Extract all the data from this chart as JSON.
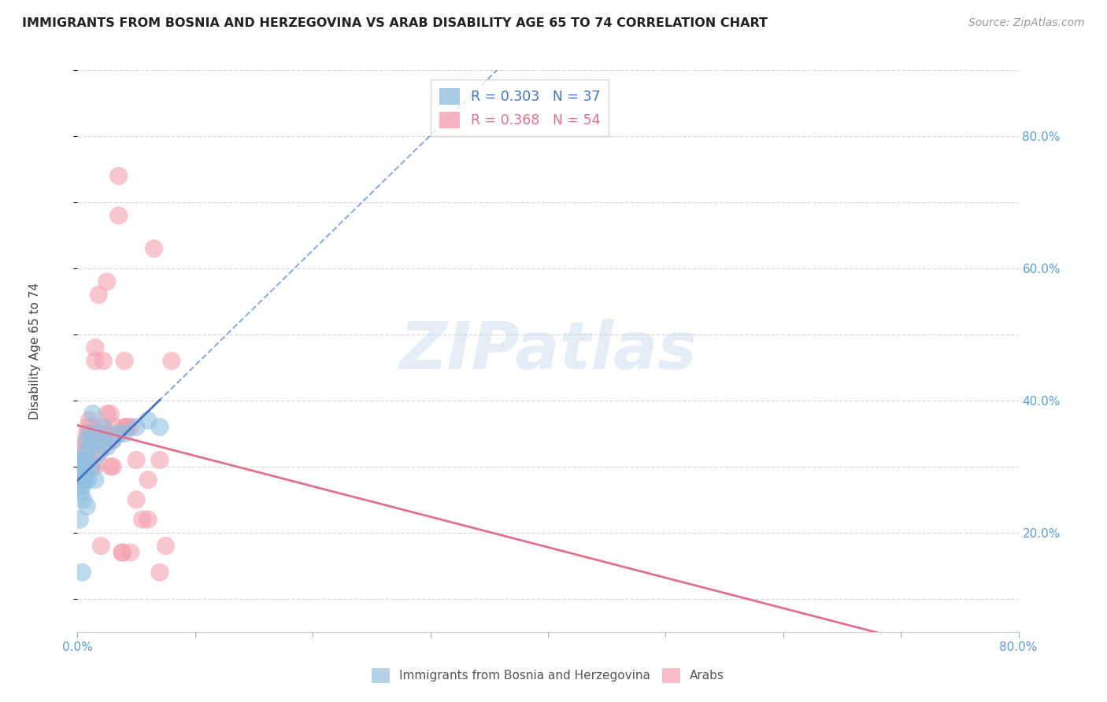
{
  "title": "IMMIGRANTS FROM BOSNIA AND HERZEGOVINA VS ARAB DISABILITY AGE 65 TO 74 CORRELATION CHART",
  "source": "Source: ZipAtlas.com",
  "ylabel": "Disability Age 65 to 74",
  "xlim": [
    0.0,
    0.8
  ],
  "ylim": [
    0.05,
    0.9
  ],
  "x_ticks": [
    0.0,
    0.1,
    0.2,
    0.3,
    0.4,
    0.5,
    0.6,
    0.7,
    0.8
  ],
  "x_tick_labels": [
    "0.0%",
    "",
    "",
    "",
    "",
    "",
    "",
    "",
    "80.0%"
  ],
  "y_ticks_right": [
    0.2,
    0.4,
    0.6,
    0.8
  ],
  "y_tick_labels_right": [
    "20.0%",
    "40.0%",
    "60.0%",
    "80.0%"
  ],
  "background_color": "#ffffff",
  "grid_color": "#d8d8d8",
  "watermark": "ZIPatlas",
  "series1_color": "#92c0e0",
  "series2_color": "#f4a0b0",
  "series1_line_color": "#4472c4",
  "series2_line_color": "#e07090",
  "series1_name": "Immigrants from Bosnia and Herzegovina",
  "series2_name": "Arabs",
  "legend_r1": "R = 0.303",
  "legend_n1": "N = 37",
  "legend_r2": "R = 0.368",
  "legend_n2": "N = 54",
  "bosnia_x": [
    0.001,
    0.002,
    0.002,
    0.003,
    0.003,
    0.003,
    0.004,
    0.004,
    0.004,
    0.005,
    0.005,
    0.005,
    0.006,
    0.006,
    0.006,
    0.007,
    0.007,
    0.008,
    0.008,
    0.009,
    0.01,
    0.011,
    0.012,
    0.013,
    0.015,
    0.016,
    0.018,
    0.02,
    0.022,
    0.025,
    0.03,
    0.035,
    0.04,
    0.05,
    0.06,
    0.07,
    0.004
  ],
  "bosnia_y": [
    0.27,
    0.28,
    0.22,
    0.3,
    0.28,
    0.26,
    0.29,
    0.27,
    0.31,
    0.28,
    0.3,
    0.25,
    0.28,
    0.29,
    0.31,
    0.3,
    0.32,
    0.34,
    0.24,
    0.28,
    0.35,
    0.33,
    0.3,
    0.38,
    0.28,
    0.35,
    0.32,
    0.34,
    0.36,
    0.33,
    0.34,
    0.35,
    0.35,
    0.36,
    0.37,
    0.36,
    0.14
  ],
  "arab_x": [
    0.001,
    0.002,
    0.003,
    0.004,
    0.005,
    0.005,
    0.006,
    0.007,
    0.008,
    0.009,
    0.01,
    0.01,
    0.012,
    0.013,
    0.015,
    0.015,
    0.016,
    0.018,
    0.02,
    0.022,
    0.022,
    0.025,
    0.025,
    0.028,
    0.03,
    0.03,
    0.032,
    0.035,
    0.035,
    0.038,
    0.04,
    0.042,
    0.045,
    0.05,
    0.055,
    0.06,
    0.065,
    0.07,
    0.075,
    0.08,
    0.02,
    0.025,
    0.035,
    0.04,
    0.045,
    0.06,
    0.07,
    0.015,
    0.018,
    0.022,
    0.038,
    0.042,
    0.05,
    0.028
  ],
  "arab_y": [
    0.28,
    0.3,
    0.29,
    0.31,
    0.3,
    0.32,
    0.33,
    0.34,
    0.35,
    0.36,
    0.31,
    0.37,
    0.3,
    0.36,
    0.3,
    0.48,
    0.35,
    0.56,
    0.35,
    0.36,
    0.46,
    0.35,
    0.58,
    0.38,
    0.34,
    0.3,
    0.36,
    0.35,
    0.68,
    0.17,
    0.36,
    0.36,
    0.36,
    0.31,
    0.22,
    0.28,
    0.63,
    0.31,
    0.18,
    0.46,
    0.18,
    0.38,
    0.74,
    0.46,
    0.17,
    0.22,
    0.14,
    0.46,
    0.32,
    0.33,
    0.17,
    0.36,
    0.25,
    0.3
  ]
}
